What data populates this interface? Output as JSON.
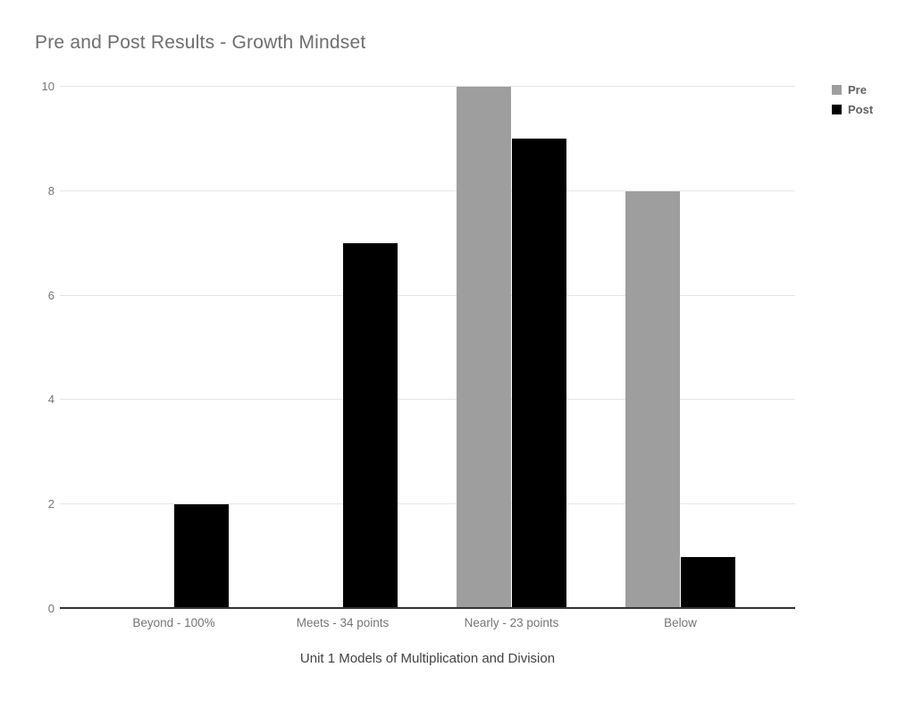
{
  "chart_data": {
    "type": "bar",
    "title": "Pre and Post Results - Growth Mindset",
    "categories": [
      "Beyond - 100%",
      "Meets - 34 points",
      "Nearly - 23 points",
      "Below"
    ],
    "series": [
      {
        "name": "Pre",
        "color": "#9e9e9e",
        "values": [
          0,
          0,
          10,
          8
        ]
      },
      {
        "name": "Post",
        "color": "#000000",
        "values": [
          2,
          7,
          9,
          1
        ]
      }
    ],
    "xlabel": "Unit 1 Models of Multiplication and Division",
    "ylabel": "",
    "ylim": [
      0,
      10
    ],
    "yticks": [
      0,
      2,
      4,
      6,
      8,
      10
    ],
    "grid": true,
    "legend_position": "top-right",
    "colors": {
      "grid": "#e6e6e6",
      "baseline": "#333333",
      "title_text": "#6e6e6e",
      "tick_text": "#757575",
      "axis_title_text": "#424242",
      "legend_text": "#616161",
      "background": "#ffffff"
    }
  }
}
